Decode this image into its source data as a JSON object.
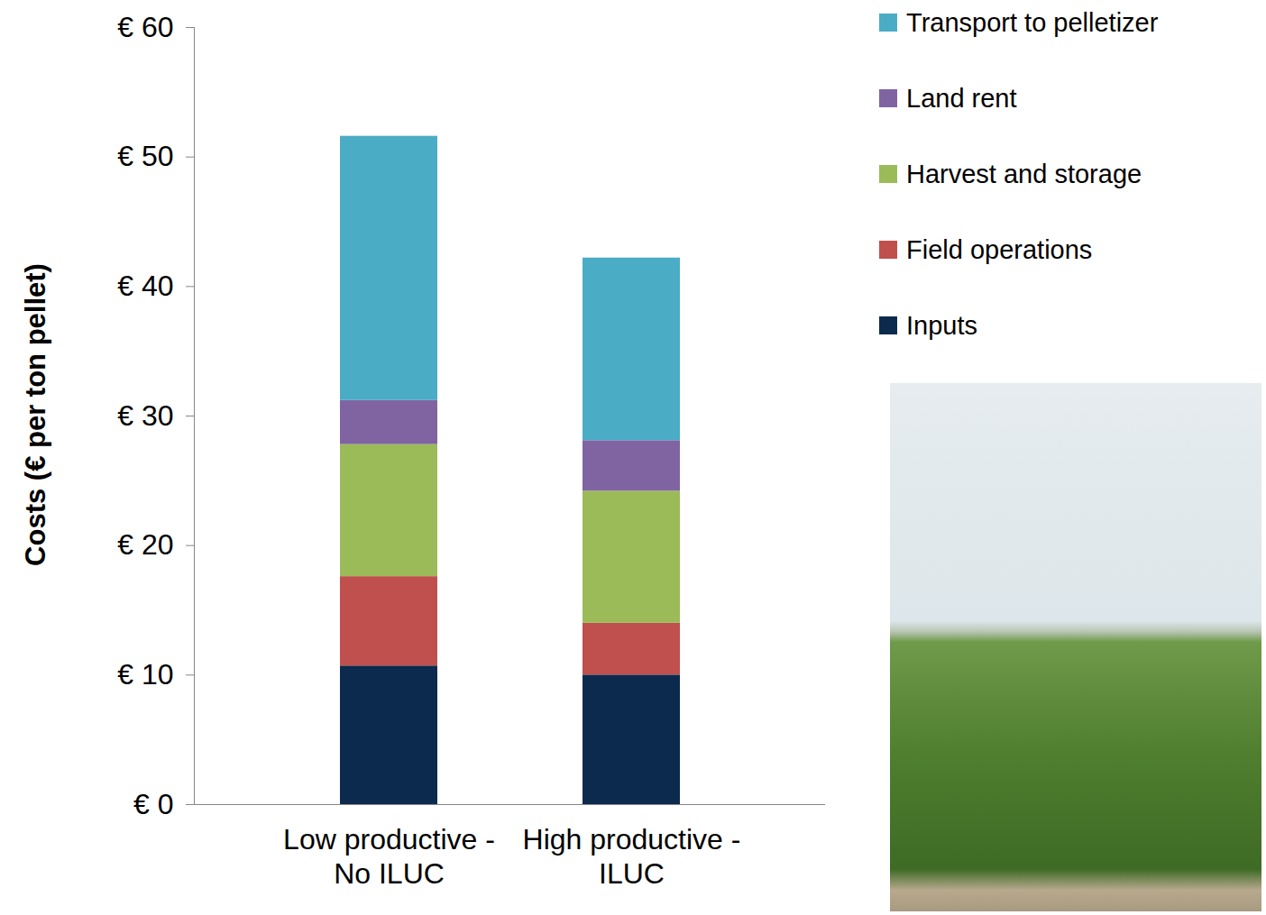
{
  "chart_data": {
    "type": "bar",
    "stacked": true,
    "legend": "right",
    "ylabel": "Costs (€ per ton pellet)",
    "categories": [
      "Low productive - No ILUC",
      "High productive - ILUC"
    ],
    "series": [
      {
        "name": "Inputs",
        "color": "#0b2a4d",
        "values": [
          10.7,
          10.0
        ]
      },
      {
        "name": "Field operations",
        "color": "#c0504d",
        "values": [
          6.9,
          4.0
        ]
      },
      {
        "name": "Harvest and storage",
        "color": "#9bbb59",
        "values": [
          10.2,
          10.2
        ]
      },
      {
        "name": "Land rent",
        "color": "#8064a2",
        "values": [
          3.4,
          3.9
        ]
      },
      {
        "name": "Transport to pelletizer",
        "color": "#4bacc6",
        "values": [
          20.4,
          14.1
        ]
      }
    ],
    "ylim": [
      0,
      60
    ],
    "yticks": [
      {
        "value": 0,
        "label": "€ 0"
      },
      {
        "value": 10,
        "label": "€ 10"
      },
      {
        "value": 20,
        "label": "€ 20"
      },
      {
        "value": 30,
        "label": "€ 30"
      },
      {
        "value": 40,
        "label": "€ 40"
      },
      {
        "value": 50,
        "label": "€ 50"
      },
      {
        "value": 60,
        "label": "€ 60"
      }
    ],
    "grid": false
  }
}
